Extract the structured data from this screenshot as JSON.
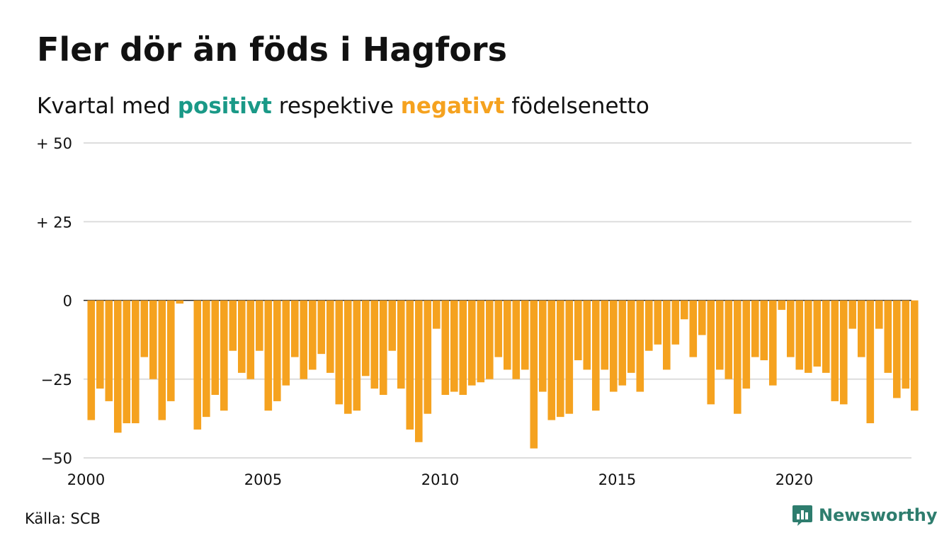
{
  "title": "Fler dör än föds i Hagfors",
  "subtitle": {
    "prefix": "Kvartal med",
    "positive": "positivt",
    "middle": "respektive",
    "negative": "negativt",
    "suffix": "födelsenetto"
  },
  "source": "Källa: SCB",
  "brand": {
    "name": "Newsworthy",
    "icon": "newsworthy-logo-icon"
  },
  "colors": {
    "positive": "#1a9987",
    "negative": "#f5a21f",
    "grid": "#dddddd",
    "brand": "#2e7d6e"
  },
  "chart_data": {
    "type": "bar",
    "x_start": "2000 Q1",
    "values": [
      -38,
      -28,
      -32,
      -42,
      -39,
      -39,
      -18,
      -25,
      -38,
      -32,
      -1,
      0,
      -41,
      -37,
      -30,
      -35,
      -16,
      -23,
      -25,
      -16,
      -35,
      -32,
      -27,
      -18,
      -25,
      -22,
      -17,
      -23,
      -33,
      -36,
      -35,
      -24,
      -28,
      -30,
      -16,
      -28,
      -41,
      -45,
      -36,
      -9,
      -30,
      -29,
      -30,
      -27,
      -26,
      -25,
      -18,
      -22,
      -25,
      -22,
      -47,
      -29,
      -38,
      -37,
      -36,
      -19,
      -22,
      -35,
      -22,
      -29,
      -27,
      -23,
      -29,
      -16,
      -14,
      -22,
      -14,
      -6,
      -18,
      -11,
      -33,
      -22,
      -25,
      -36,
      -28,
      -18,
      -19,
      -27,
      -3,
      -18,
      -22,
      -23,
      -21,
      -23,
      -32,
      -33,
      -9,
      -18,
      -39,
      -9,
      -23,
      -31,
      -28,
      -35
    ],
    "xticks": [
      "2000",
      "2005",
      "2010",
      "2015",
      "2020"
    ],
    "yticks": [
      {
        "value": 50,
        "label": "+ 50"
      },
      {
        "value": 25,
        "label": "+ 25"
      },
      {
        "value": 0,
        "label": "0"
      },
      {
        "value": -25,
        "label": "−25"
      },
      {
        "value": -50,
        "label": "−50"
      }
    ],
    "ylim": [
      -50,
      50
    ],
    "grid": true
  }
}
